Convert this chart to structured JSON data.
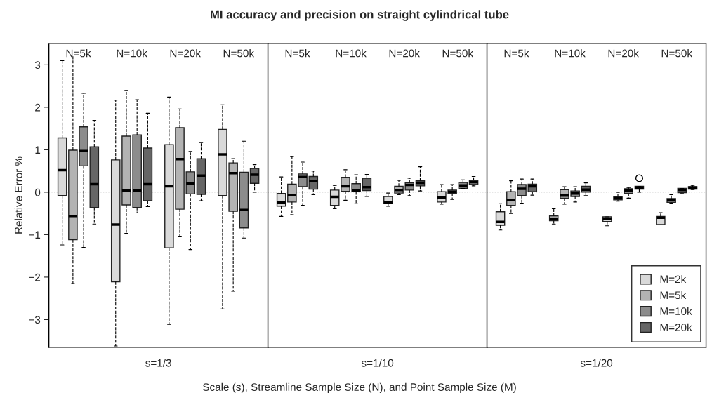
{
  "chart_data": [
    {
      "type": "box",
      "title": "MI accuracy and precision on straight cylindrical tube",
      "xlabel": "s=1/3",
      "ylabel": "Relative Error %",
      "annotations": [
        "Scale (s), Streamline Sample Size (N), and Point Sample Size (M)"
      ],
      "categories": [
        "N=5k",
        "N=10k",
        "N=20k",
        "N=50k"
      ],
      "ylim": [
        -3.65,
        3.5
      ],
      "yticks": [
        -3,
        -2,
        -1,
        0,
        1,
        2,
        3
      ],
      "grid": false,
      "ref_lines": [
        {
          "axis": "y",
          "value": 0,
          "color": "#cccccc",
          "line_style": "dotted"
        }
      ],
      "series": [
        {
          "color": "#d9d9d9",
          "boxes": [
            {
              "low": -1.24,
              "q1": -0.08,
              "median": 0.52,
              "q3": 1.28,
              "high": 3.1
            },
            {
              "low": -3.62,
              "q1": -2.11,
              "median": -0.76,
              "q3": 0.76,
              "high": 2.17
            },
            {
              "low": -3.11,
              "q1": -1.31,
              "median": 0.14,
              "q3": 1.12,
              "high": 2.24
            },
            {
              "low": -2.75,
              "q1": -0.08,
              "median": 0.89,
              "q3": 1.48,
              "high": 2.06
            }
          ]
        },
        {
          "color": "#b3b3b3",
          "boxes": [
            {
              "low": -2.15,
              "q1": -1.12,
              "median": -0.56,
              "q3": 0.99,
              "high": 3.23
            },
            {
              "low": -0.97,
              "q1": -0.3,
              "median": 0.04,
              "q3": 1.32,
              "high": 2.4
            },
            {
              "low": -1.05,
              "q1": -0.4,
              "median": 0.78,
              "q3": 1.52,
              "high": 1.96
            },
            {
              "low": -2.33,
              "q1": -0.45,
              "median": 0.45,
              "q3": 0.69,
              "high": 0.79
            }
          ]
        },
        {
          "color": "#8c8c8c",
          "boxes": [
            {
              "low": -1.3,
              "q1": 0.62,
              "median": 0.97,
              "q3": 1.54,
              "high": 2.33
            },
            {
              "low": -0.49,
              "q1": -0.36,
              "median": 0.04,
              "q3": 1.35,
              "high": 2.18
            },
            {
              "low": -1.35,
              "q1": -0.04,
              "median": 0.21,
              "q3": 0.48,
              "high": 0.96
            },
            {
              "low": -1.08,
              "q1": -0.84,
              "median": -0.42,
              "q3": 0.47,
              "high": 1.2
            }
          ]
        },
        {
          "color": "#666666",
          "boxes": [
            {
              "low": -0.75,
              "q1": -0.36,
              "median": 0.19,
              "q3": 1.07,
              "high": 1.69
            },
            {
              "low": -0.34,
              "q1": -0.2,
              "median": 0.19,
              "q3": 1.04,
              "high": 1.86
            },
            {
              "low": -0.2,
              "q1": -0.05,
              "median": 0.39,
              "q3": 0.79,
              "high": 1.17
            },
            {
              "low": 0.0,
              "q1": 0.21,
              "median": 0.41,
              "q3": 0.56,
              "high": 0.65
            }
          ]
        }
      ]
    },
    {
      "type": "box",
      "xlabel": "s=1/10",
      "categories": [
        "N=5k",
        "N=10k",
        "N=20k",
        "N=50k"
      ],
      "ylim": [
        -3.65,
        3.5
      ],
      "tick_labels": "x",
      "grid": false,
      "ref_lines": [
        {
          "axis": "y",
          "value": 0,
          "color": "#cccccc",
          "line_style": "dotted"
        }
      ],
      "series": [
        {
          "color": "#d9d9d9",
          "boxes": [
            {
              "low": -0.57,
              "q1": -0.33,
              "median": -0.24,
              "q3": -0.03,
              "high": 0.36
            },
            {
              "low": -0.39,
              "q1": -0.31,
              "median": -0.11,
              "q3": 0.05,
              "high": 0.16
            },
            {
              "low": -0.33,
              "q1": -0.26,
              "median": -0.24,
              "q3": -0.1,
              "high": -0.02
            },
            {
              "low": -0.28,
              "q1": -0.23,
              "median": -0.13,
              "q3": 0.01,
              "high": 0.18
            }
          ]
        },
        {
          "color": "#b3b3b3",
          "boxes": [
            {
              "low": -0.53,
              "q1": -0.23,
              "median": -0.07,
              "q3": 0.19,
              "high": 0.84
            },
            {
              "low": -0.19,
              "q1": 0.02,
              "median": 0.14,
              "q3": 0.35,
              "high": 0.53
            },
            {
              "low": -0.06,
              "q1": -0.02,
              "median": 0.05,
              "q3": 0.14,
              "high": 0.28
            },
            {
              "low": -0.17,
              "q1": -0.03,
              "median": 0.01,
              "q3": 0.05,
              "high": 0.18
            }
          ]
        },
        {
          "color": "#8c8c8c",
          "boxes": [
            {
              "low": -0.31,
              "q1": 0.13,
              "median": 0.36,
              "q3": 0.43,
              "high": 0.71
            },
            {
              "low": -0.27,
              "q1": 0.01,
              "median": 0.04,
              "q3": 0.2,
              "high": 0.41
            },
            {
              "low": -0.08,
              "q1": 0.05,
              "median": 0.17,
              "q3": 0.22,
              "high": 0.33
            },
            {
              "low": 0.09,
              "q1": 0.09,
              "median": 0.16,
              "q3": 0.23,
              "high": 0.29
            }
          ]
        },
        {
          "color": "#666666",
          "boxes": [
            {
              "low": -0.06,
              "q1": 0.07,
              "median": 0.26,
              "q3": 0.37,
              "high": 0.5
            },
            {
              "low": -0.1,
              "q1": 0.04,
              "median": 0.12,
              "q3": 0.33,
              "high": 0.42
            },
            {
              "low": 0.03,
              "q1": 0.15,
              "median": 0.22,
              "q3": 0.27,
              "high": 0.6
            },
            {
              "low": 0.15,
              "q1": 0.18,
              "median": 0.24,
              "q3": 0.28,
              "high": 0.37
            }
          ]
        }
      ]
    },
    {
      "type": "box",
      "xlabel": "s=1/20",
      "categories": [
        "N=5k",
        "N=10k",
        "N=20k",
        "N=50k"
      ],
      "ylim": [
        -3.65,
        3.5
      ],
      "tick_labels": "x",
      "grid": false,
      "legend": "bottom right",
      "ref_lines": [
        {
          "axis": "y",
          "value": 0,
          "color": "#cccccc",
          "line_style": "dotted"
        }
      ],
      "series": [
        {
          "name": "M=2k",
          "color": "#d9d9d9",
          "boxes": [
            {
              "low": -0.89,
              "q1": -0.78,
              "median": -0.7,
              "q3": -0.46,
              "high": -0.27
            },
            {
              "low": -0.75,
              "q1": -0.67,
              "median": -0.62,
              "q3": -0.56,
              "high": -0.39
            },
            {
              "low": -0.79,
              "q1": -0.69,
              "median": -0.63,
              "q3": -0.58,
              "high": -0.58
            },
            {
              "low": -0.77,
              "q1": -0.76,
              "median": -0.6,
              "q3": -0.57,
              "high": -0.48
            }
          ]
        },
        {
          "name": "M=5k",
          "color": "#b3b3b3",
          "boxes": [
            {
              "low": -0.5,
              "q1": -0.31,
              "median": -0.18,
              "q3": 0.01,
              "high": 0.27
            },
            {
              "low": -0.28,
              "q1": -0.14,
              "median": -0.08,
              "q3": 0.06,
              "high": 0.13
            },
            {
              "low": -0.21,
              "q1": -0.18,
              "median": -0.14,
              "q3": -0.11,
              "high": 0.0
            },
            {
              "low": -0.26,
              "q1": -0.24,
              "median": -0.19,
              "q3": -0.15,
              "high": -0.06
            }
          ]
        },
        {
          "name": "M=10k",
          "color": "#8c8c8c",
          "boxes": [
            {
              "low": -0.26,
              "q1": -0.08,
              "median": 0.08,
              "q3": 0.18,
              "high": 0.31
            },
            {
              "low": -0.23,
              "q1": -0.1,
              "median": -0.03,
              "q3": 0.03,
              "high": 0.13
            },
            {
              "low": -0.14,
              "q1": -0.03,
              "median": 0.04,
              "q3": 0.08,
              "high": 0.11
            },
            {
              "low": -0.03,
              "q1": -0.01,
              "median": 0.05,
              "q3": 0.09,
              "high": 0.09
            }
          ]
        },
        {
          "name": "M=20k",
          "color": "#666666",
          "boxes": [
            {
              "low": -0.07,
              "q1": 0.01,
              "median": 0.14,
              "q3": 0.19,
              "high": 0.31
            },
            {
              "low": -0.08,
              "q1": 0.0,
              "median": 0.06,
              "q3": 0.14,
              "high": 0.22
            },
            {
              "low": 0.0,
              "q1": 0.07,
              "median": 0.11,
              "q3": 0.14,
              "high": 0.14,
              "outliers": [
                0.33
              ]
            },
            {
              "low": 0.06,
              "q1": 0.07,
              "median": 0.11,
              "q3": 0.13,
              "high": 0.16
            }
          ]
        }
      ]
    }
  ]
}
